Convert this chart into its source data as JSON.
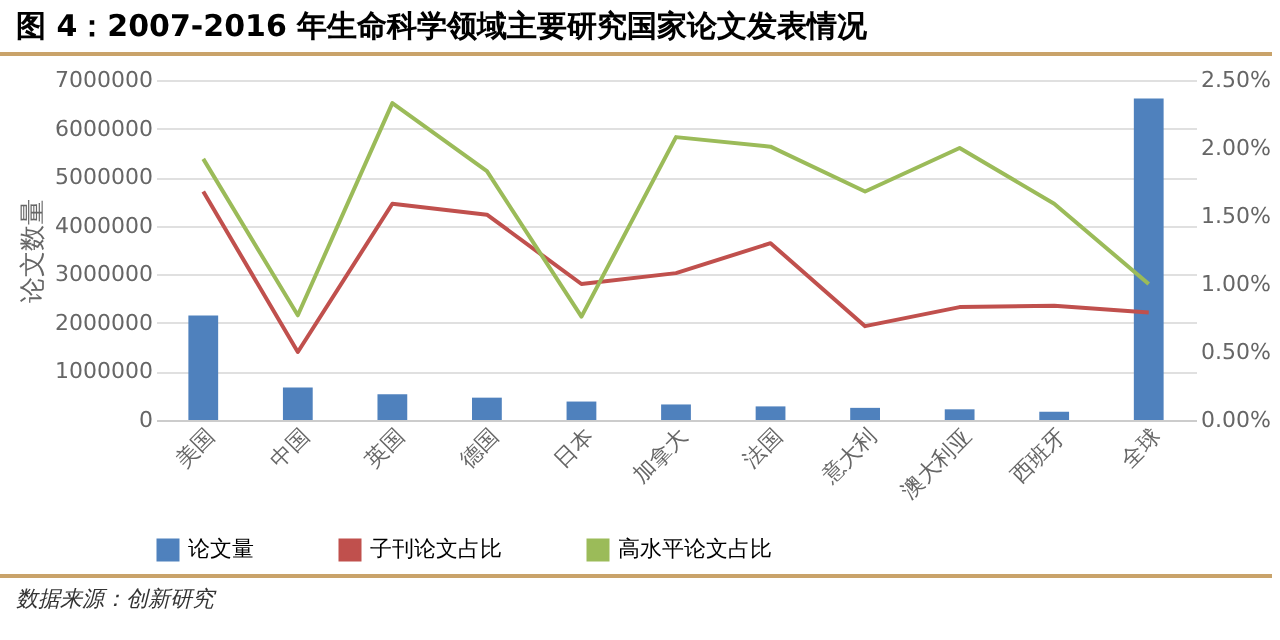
{
  "chart_data": {
    "type": "bar",
    "title": "图 4：2007-2016 年生命科学领域主要研究国家论文发表情况",
    "ylabel": "论文数量",
    "categories": [
      "美国",
      "中国",
      "英国",
      "德国",
      "日本",
      "加拿大",
      "法国",
      "意大利",
      "澳大利亚",
      "西班牙",
      "全球"
    ],
    "series": [
      {
        "name": "论文量",
        "color": "#4f81bd",
        "values": [
          2150000,
          670000,
          530000,
          460000,
          380000,
          320000,
          280000,
          250000,
          220000,
          170000,
          6620000
        ]
      },
      {
        "name": "子刊论文占比",
        "type": "line",
        "axis": "y2",
        "color": "#c0504d",
        "values": [
          1.68,
          0.5,
          1.59,
          1.51,
          1.0,
          1.08,
          1.3,
          0.69,
          0.83,
          0.84,
          0.79
        ]
      },
      {
        "name": "高水平论文占比",
        "type": "line",
        "axis": "y2",
        "color": "#9bbb59",
        "values": [
          1.92,
          0.77,
          2.33,
          1.83,
          0.76,
          2.08,
          2.01,
          1.68,
          2.0,
          1.59,
          1.0
        ]
      }
    ],
    "ylim": [
      0,
      7000000
    ],
    "yticks": [
      0,
      1000000,
      2000000,
      3000000,
      4000000,
      5000000,
      6000000,
      7000000
    ],
    "y2lim": [
      0,
      2.5
    ],
    "y2ticks": [
      {
        "value": 0,
        "label": "0.00%"
      },
      {
        "value": 0.5,
        "label": "0.50%"
      },
      {
        "value": 1,
        "label": "1.00%"
      },
      {
        "value": 1.5,
        "label": "1.50%"
      },
      {
        "value": 2,
        "label": "2.00%"
      },
      {
        "value": 2.5,
        "label": "2.50%"
      }
    ],
    "grid": "y",
    "legend": "bottom",
    "line_style": "solid",
    "annotations": [
      "数据来源：创新研究"
    ]
  }
}
